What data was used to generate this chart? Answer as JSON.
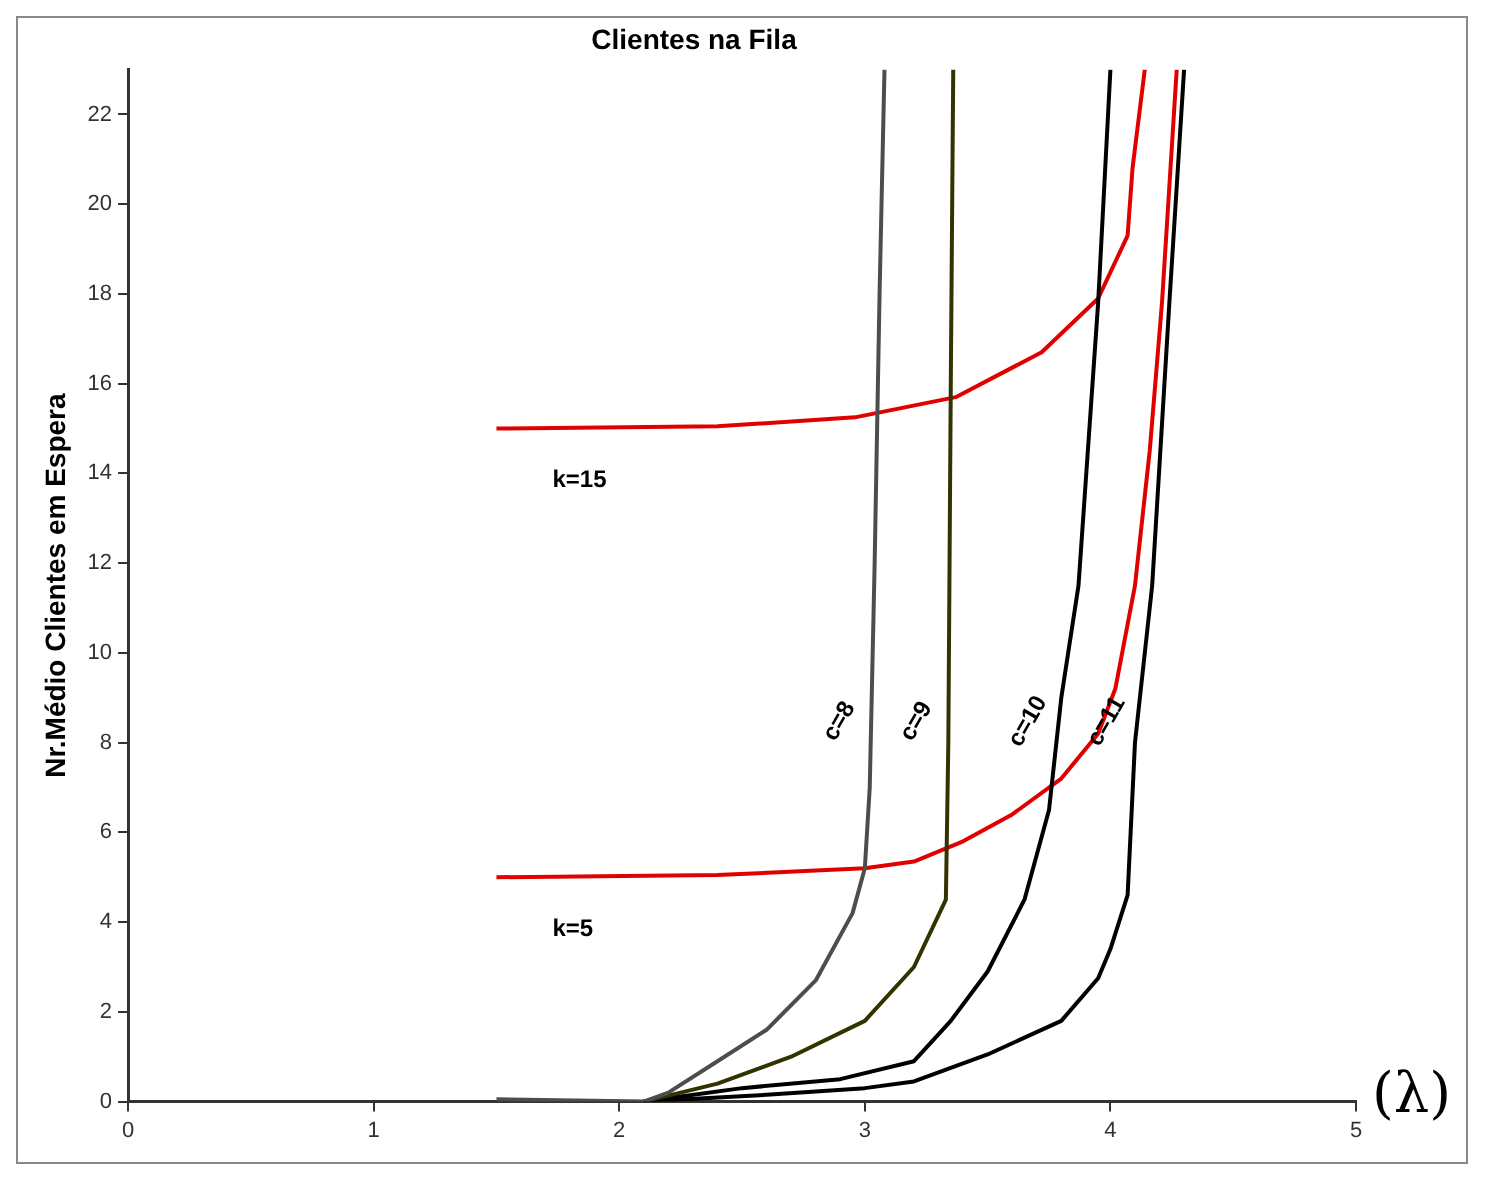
{
  "chart_data": {
    "type": "line",
    "title": "Clientes na Fila",
    "xlabel": "(λ)",
    "ylabel": "Nr.Médio Clientes em Espera",
    "xlim": [
      0,
      5
    ],
    "xticks": [
      0,
      1,
      2,
      3,
      4,
      5
    ],
    "ylim": [
      0,
      23
    ],
    "yticks": [
      0,
      2,
      4,
      6,
      8,
      10,
      12,
      14,
      16,
      18,
      20,
      22
    ],
    "grid": false,
    "legend": false,
    "marker": "none",
    "line_style": "solid",
    "series": [
      {
        "name": "c=8",
        "color": "#4d4d4d",
        "x": [
          1.5,
          2.1,
          2.2,
          2.4,
          2.6,
          2.8,
          2.95,
          3.0,
          3.02,
          3.04,
          3.06,
          3.08
        ],
        "values": [
          0.05,
          0,
          0.2,
          0.9,
          1.6,
          2.7,
          4.2,
          5.2,
          7,
          12,
          18,
          23
        ]
      },
      {
        "name": "c=9",
        "color": "#333300",
        "x": [
          2.1,
          2.4,
          2.7,
          3.0,
          3.2,
          3.33,
          3.34,
          3.35,
          3.36
        ],
        "values": [
          0,
          0.4,
          1.0,
          1.8,
          3.0,
          4.5,
          8,
          16,
          23
        ]
      },
      {
        "name": "c=10",
        "color": "#000000",
        "x": [
          2.1,
          2.5,
          2.9,
          3.2,
          3.35,
          3.5,
          3.65,
          3.75,
          3.8,
          3.87,
          3.95,
          4.0
        ],
        "values": [
          0,
          0.3,
          0.5,
          0.9,
          1.8,
          2.9,
          4.5,
          6.5,
          9,
          11.5,
          17.8,
          23
        ]
      },
      {
        "name": "c=11",
        "color": "#000000",
        "x": [
          2.1,
          2.6,
          3.0,
          3.2,
          3.5,
          3.8,
          3.95,
          4.0,
          4.07,
          4.1,
          4.17,
          4.24,
          4.3
        ],
        "values": [
          0,
          0.15,
          0.3,
          0.45,
          1.05,
          1.8,
          2.75,
          3.4,
          4.6,
          8,
          11.5,
          17.8,
          23
        ]
      },
      {
        "name": "k=5",
        "color": "#e00000",
        "x": [
          1.5,
          2.4,
          2.8,
          3.0,
          3.2,
          3.4,
          3.6,
          3.8,
          3.95,
          4.02,
          4.1,
          4.16,
          4.21,
          4.27
        ],
        "values": [
          5.0,
          5.05,
          5.15,
          5.2,
          5.35,
          5.8,
          6.4,
          7.2,
          8.2,
          9.2,
          11.5,
          14.5,
          17.8,
          23
        ]
      },
      {
        "name": "k=15",
        "color": "#e00000",
        "x": [
          1.5,
          2.4,
          2.96,
          3.37,
          3.72,
          3.95,
          4.07,
          4.09,
          4.14
        ],
        "values": [
          15.0,
          15.05,
          15.25,
          15.7,
          16.7,
          17.9,
          19.3,
          20.8,
          23
        ]
      }
    ]
  }
}
